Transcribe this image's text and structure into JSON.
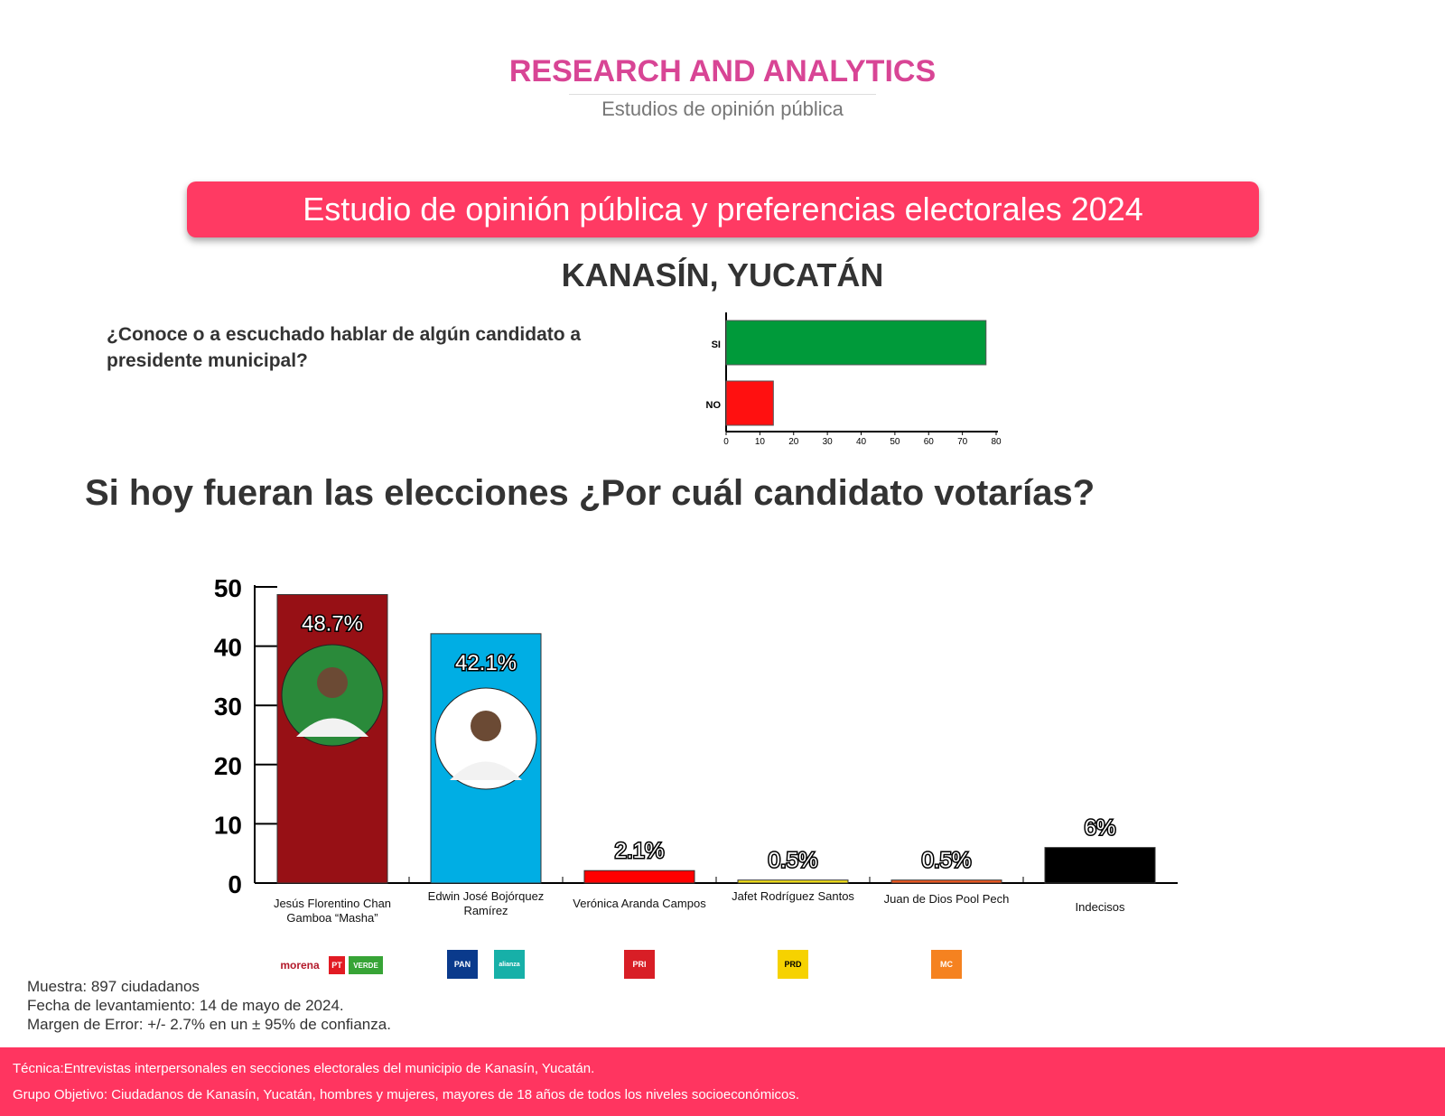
{
  "header": {
    "brand": "RESEARCH AND ANALYTICS",
    "subtitle": "Estudios de opinión pública"
  },
  "banner": "Estudio de opinión pública y preferencias electorales 2024",
  "place": "KANASÍN, YUCATÁN",
  "question1": "¿Conoce o a escuchado hablar de algún candidato a presidente municipal?",
  "question2": "Si hoy fueran las elecciones ¿Por cuál candidato votarías?",
  "chart_data": [
    {
      "type": "bar",
      "orientation": "horizontal",
      "categories": [
        "SI",
        "NO"
      ],
      "values": [
        77,
        14
      ],
      "xlim": [
        0,
        80
      ],
      "xticks": [
        0,
        10,
        20,
        30,
        40,
        50,
        60,
        70,
        80
      ],
      "colors": [
        "#009a3a",
        "#ff1010"
      ]
    },
    {
      "type": "bar",
      "categories": [
        "Jesús Florentino Chan Gamboa “Masha”",
        "Edwin José Bojórquez Ramírez",
        "Verónica Aranda Campos",
        "Jafet Rodríguez Santos",
        "Juan de Dios Pool Pech",
        "Indecisos"
      ],
      "values": [
        48.7,
        42.1,
        2.1,
        0.5,
        0.5,
        6
      ],
      "labels": [
        "48.7%",
        "42.1%",
        "2.1%",
        "0.5%",
        "0.5%",
        "6%"
      ],
      "colors": [
        "#971015",
        "#00aee4",
        "#ff0000",
        "#f5e21a",
        "#f05a22",
        "#000000"
      ],
      "ylim": [
        0,
        50
      ],
      "yticks": [
        0,
        10,
        20,
        30,
        40,
        50
      ],
      "parties": [
        [
          "morena",
          "PT",
          "VERDE"
        ],
        [
          "PAN",
          "alianza"
        ],
        [
          "PRI"
        ],
        [
          "PRD"
        ],
        [
          "MC"
        ],
        []
      ]
    }
  ],
  "notes": [
    "Muestra: 897 ciudadanos",
    "Fecha de levantamiento: 14 de mayo de 2024.",
    "Margen de Error: +/- 2.7% en un ± 95% de confianza."
  ],
  "footer": [
    "Técnica:Entrevistas interpersonales en secciones electorales del municipio de Kanasín, Yucatán.",
    "Grupo Objetivo: Ciudadanos de Kanasín, Yucatán, hombres y mujeres, mayores de 18 años de todos los niveles socioeconómicos."
  ]
}
